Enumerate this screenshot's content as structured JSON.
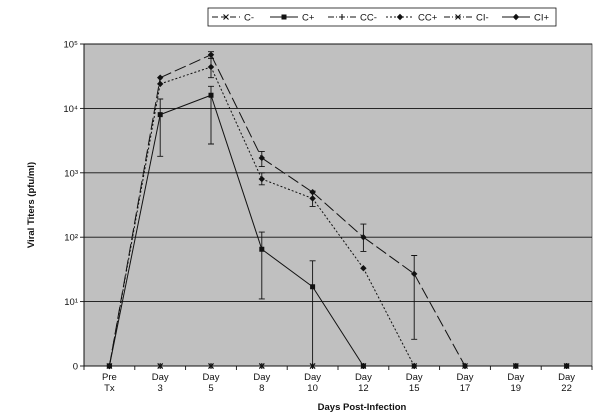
{
  "chart_data": {
    "type": "line",
    "title": "",
    "xlabel": "Days Post-Infection",
    "ylabel": "Viral Titers (pfu/ml)",
    "y_scale": "log",
    "ylim": [
      1,
      100000
    ],
    "yticks": [
      {
        "value": 1,
        "label": "0"
      },
      {
        "value": 10,
        "label": "10¹"
      },
      {
        "value": 100,
        "label": "10²"
      },
      {
        "value": 1000,
        "label": "10³"
      },
      {
        "value": 10000,
        "label": "10⁴"
      },
      {
        "value": 100000,
        "label": "10⁵"
      }
    ],
    "grid": true,
    "legend_position": "top",
    "background": "#c0c0c0",
    "categories": [
      [
        "Pre",
        "Tx"
      ],
      [
        "Day",
        "3"
      ],
      [
        "Day",
        "5"
      ],
      [
        "Day",
        "8"
      ],
      [
        "Day",
        "10"
      ],
      [
        "Day",
        "12"
      ],
      [
        "Day",
        "15"
      ],
      [
        "Day",
        "17"
      ],
      [
        "Day",
        "19"
      ],
      [
        "Day",
        "22"
      ]
    ],
    "series": [
      {
        "name": "C-",
        "dash": "6,3",
        "marker": "x",
        "values": [
          1,
          1,
          1,
          1,
          1,
          1,
          1,
          1,
          1,
          1
        ]
      },
      {
        "name": "C+",
        "dash": "",
        "marker": "square",
        "values": [
          1,
          8000,
          16000,
          65,
          17,
          1,
          null,
          null,
          1,
          1
        ],
        "err_low": [
          null,
          1800,
          2800,
          11,
          1,
          null,
          null,
          null,
          null,
          null
        ],
        "err_high": [
          null,
          14000,
          22000,
          120,
          43,
          null,
          null,
          null,
          null,
          null
        ]
      },
      {
        "name": "CC-",
        "dash": "6,2,1,2",
        "marker": "plus",
        "values": [
          1,
          1,
          1,
          1,
          1,
          1,
          1,
          1,
          1,
          1
        ]
      },
      {
        "name": "CC+",
        "dash": "2,2",
        "marker": "diamond",
        "values": [
          1,
          24000,
          44000,
          800,
          400,
          33,
          1,
          null,
          null,
          null
        ],
        "err_low": [
          null,
          null,
          30000,
          650,
          300,
          null,
          null,
          null,
          null,
          null
        ],
        "err_high": [
          null,
          null,
          60000,
          1000,
          520,
          null,
          null,
          null,
          null,
          null
        ]
      },
      {
        "name": "CI-",
        "dash": "6,2,1,2",
        "marker": "x",
        "values": [
          1,
          1,
          1,
          1,
          1,
          1,
          1,
          1,
          1,
          1
        ]
      },
      {
        "name": "CI+",
        "dash": "12,4",
        "marker": "diamond",
        "values": [
          1,
          30000,
          68000,
          1700,
          500,
          100,
          27,
          1,
          null,
          null
        ],
        "err_low": [
          null,
          null,
          60000,
          1250,
          null,
          60,
          2.6,
          null,
          null,
          null
        ],
        "err_high": [
          null,
          null,
          76000,
          2150,
          null,
          160,
          52,
          null,
          null,
          null
        ]
      }
    ]
  }
}
